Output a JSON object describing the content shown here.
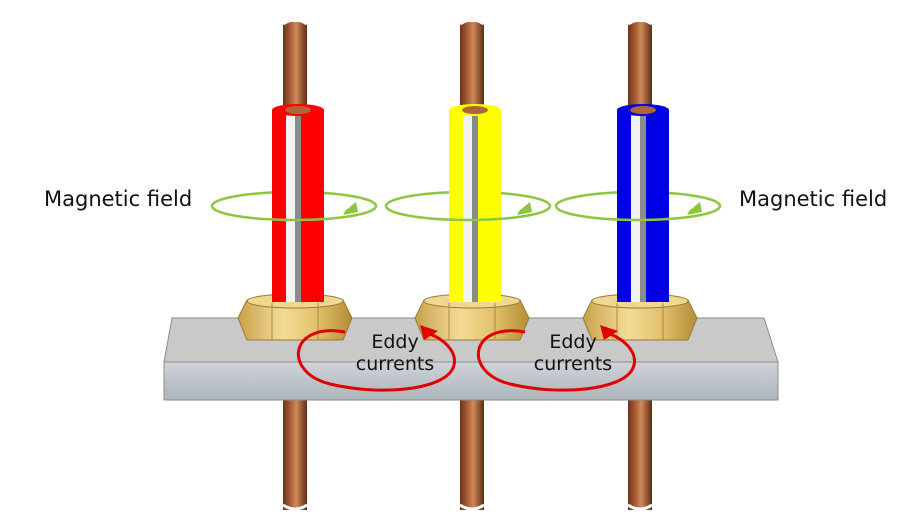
{
  "labels": {
    "magnetic_field_left": "Magnetic field",
    "magnetic_field_right": "Magnetic field",
    "eddy_1_line1": "Eddy",
    "eddy_1_line2": "currents",
    "eddy_2_line1": "Eddy",
    "eddy_2_line2": "currents"
  },
  "conductors": [
    {
      "phase": "1",
      "insulation_color": "#ff0000"
    },
    {
      "phase": "2",
      "insulation_color": "#ffff00"
    },
    {
      "phase": "3",
      "insulation_color": "#0000e6"
    }
  ],
  "colors": {
    "copper": "#a0522d",
    "copper_dark": "#6b3218",
    "field_ring": "#8dc63f",
    "eddy_arrow": "#e00000",
    "plate_top": "#c7c7c7",
    "plate_front": "#b9bfc6",
    "nut": "#e6c77a"
  }
}
